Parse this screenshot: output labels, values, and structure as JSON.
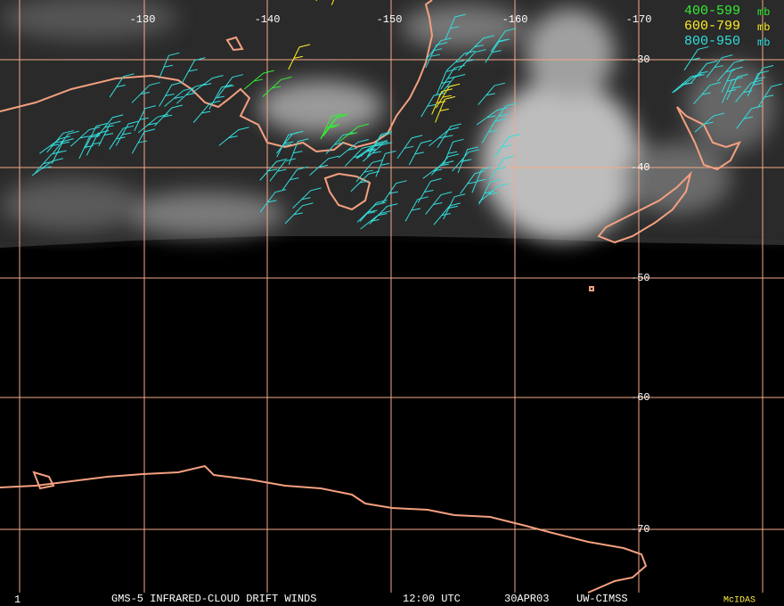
{
  "map": {
    "longitude_labels": [
      "-130",
      "-140",
      "-150",
      "-160",
      "-170"
    ],
    "latitude_labels": [
      "-30",
      "-40",
      "-50",
      "-60",
      "-70"
    ],
    "legend": [
      {
        "label": "400-599",
        "unit": "mb"
      },
      {
        "label": "600-799",
        "unit": "mb"
      },
      {
        "label": "800-950",
        "unit": "mb"
      }
    ],
    "footer": {
      "frame": "1",
      "product": "GMS-5 INFRARED-CLOUD DRIFT WINDS",
      "time": "12:00 UTC",
      "date": "30APR03",
      "source": "UW-CIMSS",
      "software": "McIDAS"
    }
  }
}
